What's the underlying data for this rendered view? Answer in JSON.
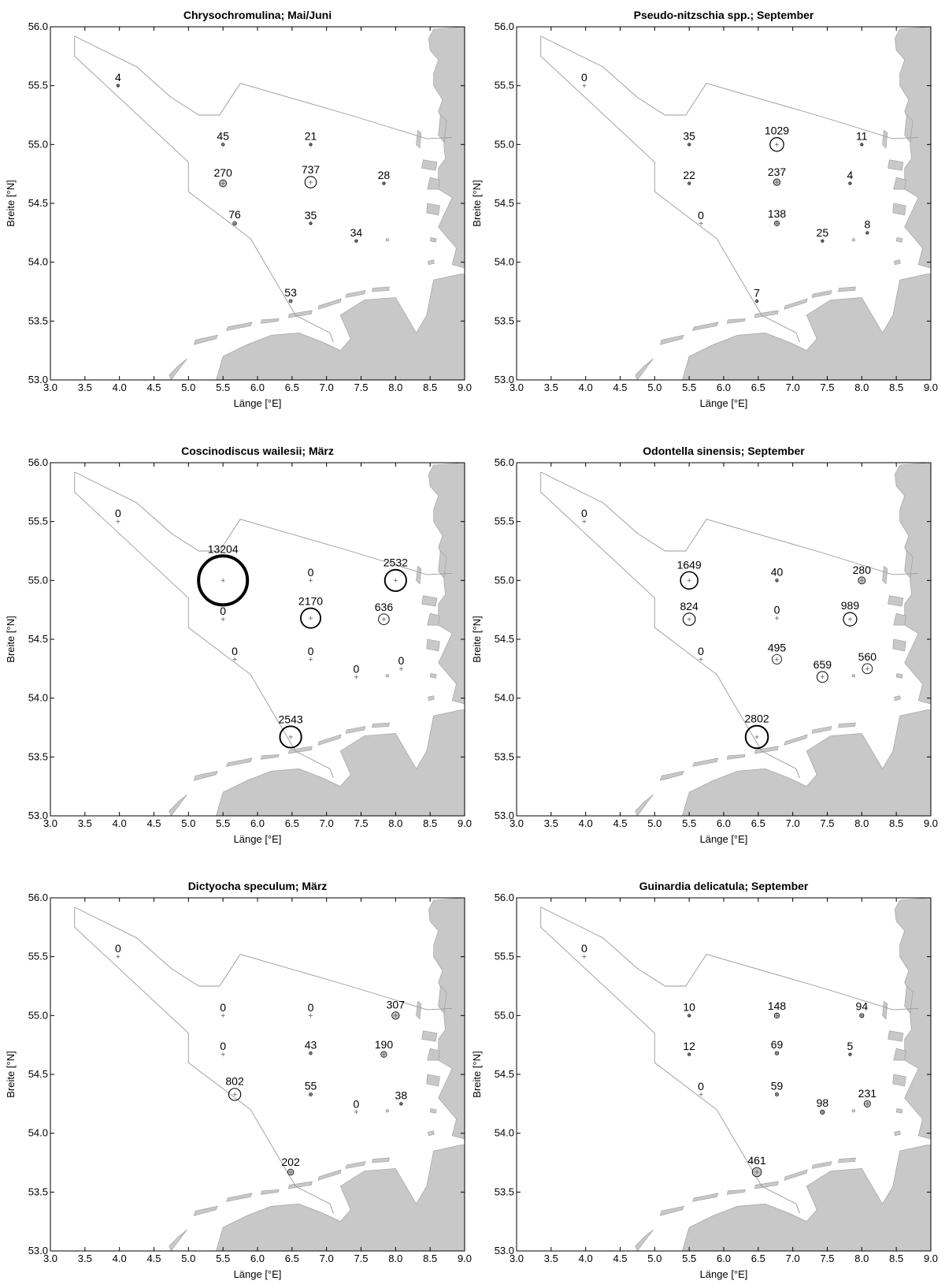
{
  "figure": {
    "xlabel": "Länge [°E]",
    "ylabel": "Breite [°N]",
    "xlim": [
      3.0,
      9.0
    ],
    "ylim": [
      53.0,
      56.0
    ],
    "xticks": [
      "3.0",
      "3.5",
      "4.0",
      "4.5",
      "5.0",
      "5.5",
      "6.0",
      "6.5",
      "7.0",
      "7.5",
      "8.0",
      "8.5",
      "9.0"
    ],
    "yticks": [
      "53.0",
      "53.5",
      "54.0",
      "54.5",
      "55.0",
      "55.5",
      "56.0"
    ]
  },
  "colors": {
    "land": "#c8c8c8",
    "coast_outline": "#9a9a9a",
    "frame": "#000000",
    "circle": "#000000",
    "circle_fill": "#bdbdbd"
  },
  "chart_data": [
    {
      "type": "scatter",
      "title": "Chrysochromulina; Mai/Juni",
      "xlabel": "Länge [°E]",
      "ylabel": "Breite [°N]",
      "xlim": [
        3.0,
        9.0
      ],
      "ylim": [
        53.0,
        56.0
      ],
      "points": [
        {
          "lon": 3.98,
          "lat": 55.5,
          "value": 4,
          "label": "4"
        },
        {
          "lon": 5.5,
          "lat": 55.0,
          "value": 45,
          "label": "45"
        },
        {
          "lon": 6.77,
          "lat": 55.0,
          "value": 21,
          "label": "21"
        },
        {
          "lon": 5.5,
          "lat": 54.67,
          "value": 270,
          "label": "270"
        },
        {
          "lon": 6.77,
          "lat": 54.68,
          "value": 737,
          "label": "737"
        },
        {
          "lon": 7.83,
          "lat": 54.67,
          "value": 28,
          "label": "28"
        },
        {
          "lon": 5.67,
          "lat": 54.33,
          "value": 76,
          "label": "76"
        },
        {
          "lon": 6.77,
          "lat": 54.33,
          "value": 35,
          "label": "35"
        },
        {
          "lon": 7.43,
          "lat": 54.18,
          "value": 34,
          "label": "34"
        },
        {
          "lon": 6.48,
          "lat": 53.67,
          "value": 53,
          "label": "53"
        }
      ]
    },
    {
      "type": "scatter",
      "title": "Pseudo-nitzschia spp.; September",
      "xlabel": "Länge [°E]",
      "ylabel": "Breite [°N]",
      "xlim": [
        3.0,
        9.0
      ],
      "ylim": [
        53.0,
        56.0
      ],
      "points": [
        {
          "lon": 3.98,
          "lat": 55.5,
          "value": 0,
          "label": "0"
        },
        {
          "lon": 5.5,
          "lat": 55.0,
          "value": 35,
          "label": "35"
        },
        {
          "lon": 6.77,
          "lat": 55.0,
          "value": 1029,
          "label": "1029"
        },
        {
          "lon": 8.0,
          "lat": 55.0,
          "value": 11,
          "label": "11"
        },
        {
          "lon": 5.5,
          "lat": 54.67,
          "value": 22,
          "label": "22"
        },
        {
          "lon": 6.77,
          "lat": 54.68,
          "value": 237,
          "label": "237"
        },
        {
          "lon": 7.83,
          "lat": 54.67,
          "value": 4,
          "label": "4"
        },
        {
          "lon": 5.67,
          "lat": 54.33,
          "value": 0,
          "label": "0"
        },
        {
          "lon": 6.77,
          "lat": 54.33,
          "value": 138,
          "label": "138"
        },
        {
          "lon": 7.43,
          "lat": 54.18,
          "value": 25,
          "label": "25"
        },
        {
          "lon": 8.08,
          "lat": 54.25,
          "value": 8,
          "label": "8"
        },
        {
          "lon": 6.48,
          "lat": 53.67,
          "value": 7,
          "label": "7"
        }
      ]
    },
    {
      "type": "scatter",
      "title": "Coscinodiscus wailesii; März",
      "xlabel": "Länge [°E]",
      "ylabel": "Breite [°N]",
      "xlim": [
        3.0,
        9.0
      ],
      "ylim": [
        53.0,
        56.0
      ],
      "points": [
        {
          "lon": 3.98,
          "lat": 55.5,
          "value": 0,
          "label": "0"
        },
        {
          "lon": 5.5,
          "lat": 55.0,
          "value": 13204,
          "label": "13204"
        },
        {
          "lon": 6.77,
          "lat": 55.0,
          "value": 0,
          "label": "0"
        },
        {
          "lon": 8.0,
          "lat": 55.0,
          "value": 2532,
          "label": "2532"
        },
        {
          "lon": 5.5,
          "lat": 54.67,
          "value": 0,
          "label": "0"
        },
        {
          "lon": 6.77,
          "lat": 54.68,
          "value": 2170,
          "label": "2170"
        },
        {
          "lon": 7.83,
          "lat": 54.67,
          "value": 636,
          "label": "636"
        },
        {
          "lon": 5.67,
          "lat": 54.33,
          "value": 0,
          "label": "0"
        },
        {
          "lon": 6.77,
          "lat": 54.33,
          "value": 0,
          "label": "0"
        },
        {
          "lon": 7.43,
          "lat": 54.18,
          "value": 0,
          "label": "0"
        },
        {
          "lon": 8.08,
          "lat": 54.25,
          "value": 0,
          "label": "0"
        },
        {
          "lon": 6.48,
          "lat": 53.67,
          "value": 2543,
          "label": "2543"
        }
      ]
    },
    {
      "type": "scatter",
      "title": "Odontella sinensis; September",
      "xlabel": "Länge [°E]",
      "ylabel": "Breite [°N]",
      "xlim": [
        3.0,
        9.0
      ],
      "ylim": [
        53.0,
        56.0
      ],
      "points": [
        {
          "lon": 3.98,
          "lat": 55.5,
          "value": 0,
          "label": "0"
        },
        {
          "lon": 5.5,
          "lat": 55.0,
          "value": 1649,
          "label": "1649"
        },
        {
          "lon": 6.77,
          "lat": 55.0,
          "value": 40,
          "label": "40"
        },
        {
          "lon": 8.0,
          "lat": 55.0,
          "value": 280,
          "label": "280"
        },
        {
          "lon": 5.5,
          "lat": 54.67,
          "value": 824,
          "label": "824"
        },
        {
          "lon": 6.77,
          "lat": 54.68,
          "value": 0,
          "label": "0"
        },
        {
          "lon": 7.83,
          "lat": 54.67,
          "value": 989,
          "label": "989"
        },
        {
          "lon": 5.67,
          "lat": 54.33,
          "value": 0,
          "label": "0"
        },
        {
          "lon": 6.77,
          "lat": 54.33,
          "value": 495,
          "label": "495"
        },
        {
          "lon": 7.43,
          "lat": 54.18,
          "value": 659,
          "label": "659"
        },
        {
          "lon": 8.08,
          "lat": 54.25,
          "value": 560,
          "label": "560"
        },
        {
          "lon": 6.48,
          "lat": 53.67,
          "value": 2802,
          "label": "2802"
        }
      ]
    },
    {
      "type": "scatter",
      "title": "Dictyocha speculum; März",
      "xlabel": "Länge [°E]",
      "ylabel": "Breite [°N]",
      "xlim": [
        3.0,
        9.0
      ],
      "ylim": [
        53.0,
        56.0
      ],
      "points": [
        {
          "lon": 3.98,
          "lat": 55.5,
          "value": 0,
          "label": "0"
        },
        {
          "lon": 5.5,
          "lat": 55.0,
          "value": 0,
          "label": "0"
        },
        {
          "lon": 6.77,
          "lat": 55.0,
          "value": 0,
          "label": "0"
        },
        {
          "lon": 8.0,
          "lat": 55.0,
          "value": 307,
          "label": "307"
        },
        {
          "lon": 5.5,
          "lat": 54.67,
          "value": 0,
          "label": "0"
        },
        {
          "lon": 6.77,
          "lat": 54.68,
          "value": 43,
          "label": "43"
        },
        {
          "lon": 7.83,
          "lat": 54.67,
          "value": 190,
          "label": "190"
        },
        {
          "lon": 5.67,
          "lat": 54.33,
          "value": 802,
          "label": "802"
        },
        {
          "lon": 6.77,
          "lat": 54.33,
          "value": 55,
          "label": "55"
        },
        {
          "lon": 7.43,
          "lat": 54.18,
          "value": 0,
          "label": "0"
        },
        {
          "lon": 8.08,
          "lat": 54.25,
          "value": 38,
          "label": "38"
        },
        {
          "lon": 6.48,
          "lat": 53.67,
          "value": 202,
          "label": "202"
        }
      ]
    },
    {
      "type": "scatter",
      "title": "Guinardia delicatula; September",
      "xlabel": "Länge [°E]",
      "ylabel": "Breite [°N]",
      "xlim": [
        3.0,
        9.0
      ],
      "ylim": [
        53.0,
        56.0
      ],
      "points": [
        {
          "lon": 3.98,
          "lat": 55.5,
          "value": 0,
          "label": "0"
        },
        {
          "lon": 5.5,
          "lat": 55.0,
          "value": 10,
          "label": "10"
        },
        {
          "lon": 6.77,
          "lat": 55.0,
          "value": 148,
          "label": "148"
        },
        {
          "lon": 8.0,
          "lat": 55.0,
          "value": 94,
          "label": "94"
        },
        {
          "lon": 5.5,
          "lat": 54.67,
          "value": 12,
          "label": "12"
        },
        {
          "lon": 6.77,
          "lat": 54.68,
          "value": 69,
          "label": "69"
        },
        {
          "lon": 7.83,
          "lat": 54.67,
          "value": 5,
          "label": "5"
        },
        {
          "lon": 5.67,
          "lat": 54.33,
          "value": 0,
          "label": "0"
        },
        {
          "lon": 6.77,
          "lat": 54.33,
          "value": 59,
          "label": "59"
        },
        {
          "lon": 7.43,
          "lat": 54.18,
          "value": 98,
          "label": "98"
        },
        {
          "lon": 8.08,
          "lat": 54.25,
          "value": 231,
          "label": "231"
        },
        {
          "lon": 6.48,
          "lat": 53.67,
          "value": 461,
          "label": "461"
        }
      ]
    }
  ]
}
